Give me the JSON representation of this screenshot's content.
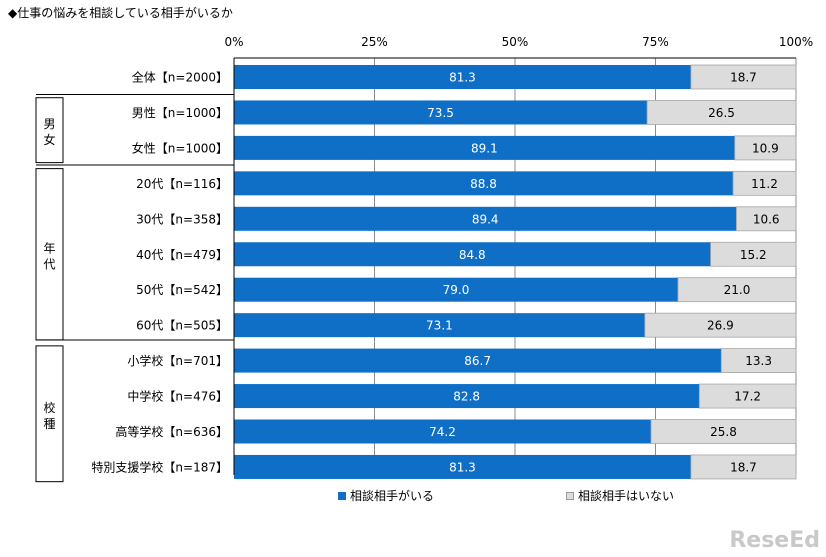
{
  "title": "◆仕事の悩みを相談している相手がいるか",
  "colors": {
    "yes": "#0F6FC6",
    "no": "#DCDCDC",
    "axis": "#000000",
    "grid": "#8c8c8c"
  },
  "chart_data": {
    "type": "bar",
    "orientation": "horizontal",
    "stacked": true,
    "title": "◆仕事の悩みを相談している相手がいるか",
    "x_ticks": [
      "0%",
      "25%",
      "50%",
      "75%",
      "100%"
    ],
    "xlim": [
      0,
      100
    ],
    "categories": [
      "全体【n=2000】",
      "男性【n=1000】",
      "女性【n=1000】",
      "20代【n=116】",
      "30代【n=358】",
      "40代【n=479】",
      "50代【n=542】",
      "60代【n=505】",
      "小学校【n=701】",
      "中学校【n=476】",
      "高等学校【n=636】",
      "特別支援学校【n=187】"
    ],
    "series": [
      {
        "name": "相談相手がいる",
        "values": [
          81.3,
          73.5,
          89.1,
          88.8,
          89.4,
          84.8,
          79.0,
          73.1,
          86.7,
          82.8,
          74.2,
          81.3
        ]
      },
      {
        "name": "相談相手はいない",
        "values": [
          18.7,
          26.5,
          10.9,
          11.2,
          10.6,
          15.2,
          21.0,
          26.9,
          13.3,
          17.2,
          25.8,
          18.7
        ]
      }
    ],
    "value_labels": {
      "yes": [
        "81.3",
        "73.5",
        "89.1",
        "88.8",
        "89.4",
        "84.8",
        "79.0",
        "73.1",
        "86.7",
        "82.8",
        "74.2",
        "81.3"
      ],
      "no": [
        "18.7",
        "26.5",
        "10.9",
        "11.2",
        "10.6",
        "15.2",
        "21.0",
        "26.9",
        "13.3",
        "17.2",
        "25.8",
        "18.7"
      ]
    },
    "groups": [
      {
        "label": "男女",
        "chars": [
          "男",
          "女"
        ],
        "rows": [
          1,
          2
        ]
      },
      {
        "label": "年代",
        "chars": [
          "年",
          "代"
        ],
        "rows": [
          3,
          7
        ]
      },
      {
        "label": "校種",
        "chars": [
          "校",
          "種"
        ],
        "rows": [
          8,
          11
        ]
      }
    ],
    "legend_position": "bottom"
  },
  "watermark": "ReseEd"
}
